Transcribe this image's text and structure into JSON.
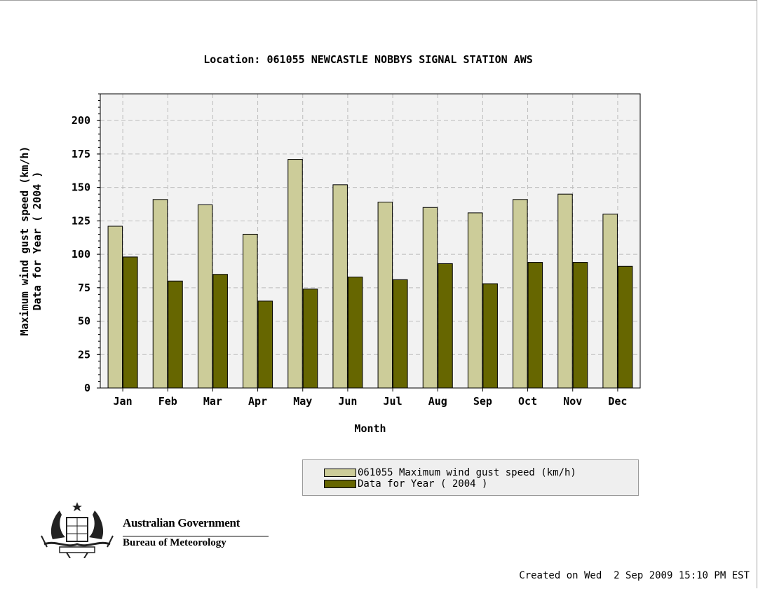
{
  "footer": {
    "created": "Created on Wed  2 Sep 2009 15:10 PM EST"
  },
  "logo": {
    "org_name": "Australian Government",
    "agency": "Bureau of Meteorology"
  },
  "colors": {
    "series1": "#cccc99",
    "series2": "#666600",
    "plot_background": "#f2f2f2",
    "grid": "#bdbdbd"
  },
  "chart_data": {
    "type": "bar",
    "title": "Location: 061055 NEWCASTLE NOBBYS SIGNAL STATION AWS",
    "xlabel": "Month",
    "ylabel": [
      "Maximum wind gust speed (km/h)",
      "Data for Year ( 2004 )"
    ],
    "categories": [
      "Jan",
      "Feb",
      "Mar",
      "Apr",
      "May",
      "Jun",
      "Jul",
      "Aug",
      "Sep",
      "Oct",
      "Nov",
      "Dec"
    ],
    "ylim": [
      0,
      220
    ],
    "yticks": [
      0,
      25,
      50,
      75,
      100,
      125,
      150,
      175,
      200
    ],
    "grid": true,
    "legend_position": "bottom-right",
    "series": [
      {
        "name": "061055 Maximum wind gust speed (km/h)",
        "values": [
          121,
          141,
          137,
          115,
          171,
          152,
          139,
          135,
          131,
          141,
          145,
          130
        ]
      },
      {
        "name": "Data for Year ( 2004 )",
        "values": [
          98,
          80,
          85,
          65,
          74,
          83,
          81,
          93,
          78,
          94,
          94,
          91
        ]
      }
    ]
  }
}
